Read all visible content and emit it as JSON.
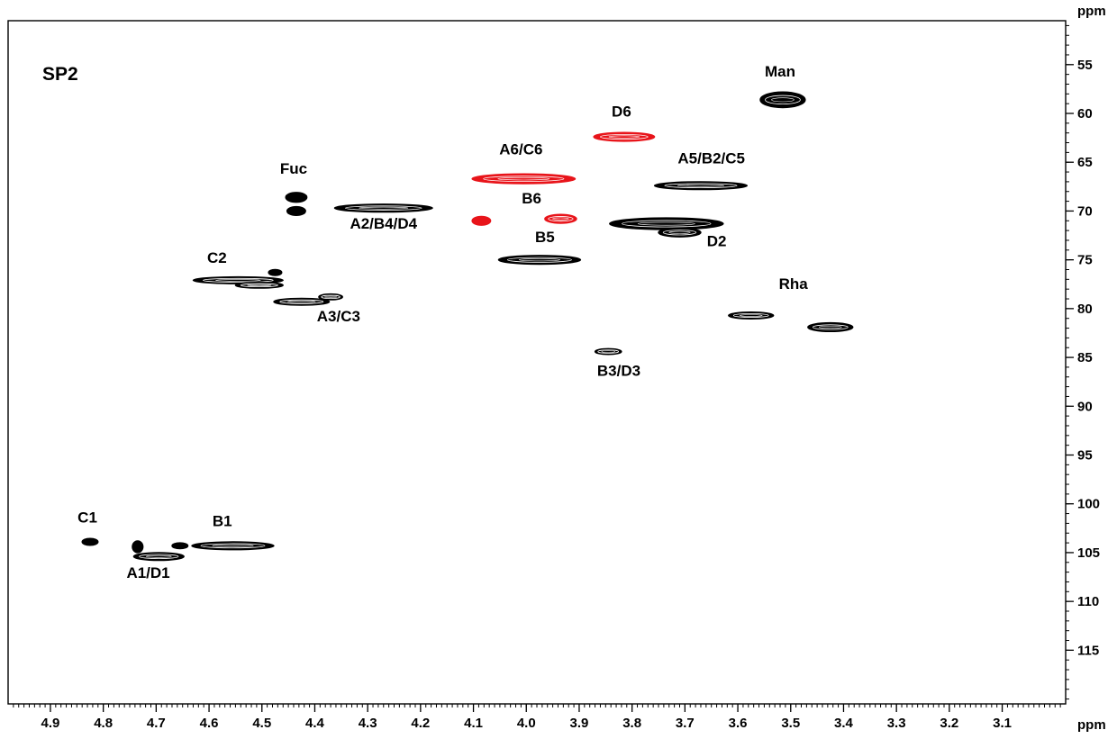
{
  "chart_data": {
    "type": "scatter",
    "panel_label": "SP2",
    "xlabel": "ppm",
    "ylabel": "ppm",
    "x_reversed": true,
    "y_reversed": true,
    "xlim": [
      4.98,
      2.98
    ],
    "ylim": [
      50.5,
      120.5
    ],
    "x_ticks": [
      4.9,
      4.8,
      4.7,
      4.6,
      4.5,
      4.4,
      4.3,
      4.2,
      4.1,
      4.0,
      3.9,
      3.8,
      3.7,
      3.6,
      3.5,
      3.4,
      3.3,
      3.2,
      3.1
    ],
    "x_tick_labels": [
      "4.9",
      "4.8",
      "4.7",
      "4.6",
      "4.5",
      "4.4",
      "4.3",
      "4.2",
      "4.1",
      "4.0",
      "3.9",
      "3.8",
      "3.7",
      "3.6",
      "3.5",
      "3.4",
      "3.3",
      "3.2",
      "3.1"
    ],
    "y_ticks": [
      55,
      60,
      65,
      70,
      75,
      80,
      85,
      90,
      95,
      100,
      105,
      110,
      115
    ],
    "y_tick_labels": [
      "55",
      "60",
      "65",
      "70",
      "75",
      "80",
      "85",
      "90",
      "95",
      "100",
      "105",
      "110",
      "115"
    ],
    "colors": {
      "positive": "#000000",
      "negative": "#e8141a"
    },
    "peaks": [
      {
        "x": 3.515,
        "y": 58.6,
        "w": 0.085,
        "h": 1.6,
        "color": "black"
      },
      {
        "x": 3.815,
        "y": 62.4,
        "w": 0.115,
        "h": 0.9,
        "color": "red"
      },
      {
        "x": 4.005,
        "y": 66.7,
        "w": 0.195,
        "h": 1.0,
        "color": "red"
      },
      {
        "x": 3.67,
        "y": 67.4,
        "w": 0.175,
        "h": 0.8,
        "color": "black"
      },
      {
        "x": 4.435,
        "y": 68.6,
        "w": 0.04,
        "h": 1.0,
        "color": "black"
      },
      {
        "x": 4.435,
        "y": 70.0,
        "w": 0.035,
        "h": 0.9,
        "color": "black"
      },
      {
        "x": 4.27,
        "y": 69.7,
        "w": 0.185,
        "h": 0.8,
        "color": "black"
      },
      {
        "x": 4.085,
        "y": 71.0,
        "w": 0.035,
        "h": 0.9,
        "color": "red"
      },
      {
        "x": 3.935,
        "y": 70.8,
        "w": 0.06,
        "h": 0.9,
        "color": "red"
      },
      {
        "x": 3.735,
        "y": 71.3,
        "w": 0.215,
        "h": 1.2,
        "color": "black"
      },
      {
        "x": 3.71,
        "y": 72.2,
        "w": 0.08,
        "h": 0.9,
        "color": "black"
      },
      {
        "x": 3.975,
        "y": 75.0,
        "w": 0.155,
        "h": 0.9,
        "color": "black"
      },
      {
        "x": 4.545,
        "y": 77.1,
        "w": 0.17,
        "h": 0.7,
        "color": "black"
      },
      {
        "x": 4.505,
        "y": 77.6,
        "w": 0.09,
        "h": 0.6,
        "color": "black"
      },
      {
        "x": 4.475,
        "y": 76.3,
        "w": 0.025,
        "h": 0.6,
        "color": "black"
      },
      {
        "x": 4.425,
        "y": 79.3,
        "w": 0.105,
        "h": 0.7,
        "color": "black"
      },
      {
        "x": 4.37,
        "y": 78.8,
        "w": 0.045,
        "h": 0.6,
        "color": "black"
      },
      {
        "x": 3.575,
        "y": 80.7,
        "w": 0.085,
        "h": 0.7,
        "color": "black"
      },
      {
        "x": 3.425,
        "y": 81.9,
        "w": 0.085,
        "h": 0.9,
        "color": "black"
      },
      {
        "x": 3.845,
        "y": 84.4,
        "w": 0.05,
        "h": 0.6,
        "color": "black"
      },
      {
        "x": 4.825,
        "y": 103.9,
        "w": 0.03,
        "h": 0.7,
        "color": "black"
      },
      {
        "x": 4.695,
        "y": 105.4,
        "w": 0.095,
        "h": 0.8,
        "color": "black"
      },
      {
        "x": 4.735,
        "y": 104.4,
        "w": 0.02,
        "h": 1.2,
        "color": "black"
      },
      {
        "x": 4.655,
        "y": 104.3,
        "w": 0.03,
        "h": 0.6,
        "color": "black"
      },
      {
        "x": 4.555,
        "y": 104.3,
        "w": 0.155,
        "h": 0.8,
        "color": "black"
      }
    ],
    "labels": [
      {
        "text": "Man",
        "x": 3.52,
        "y": 56.2
      },
      {
        "text": "D6",
        "x": 3.82,
        "y": 60.3
      },
      {
        "text": "A6/C6",
        "x": 4.01,
        "y": 64.2
      },
      {
        "text": "A5/B2/C5",
        "x": 3.65,
        "y": 65.1
      },
      {
        "text": "Fuc",
        "x": 4.44,
        "y": 66.2
      },
      {
        "text": "B6",
        "x": 3.99,
        "y": 69.2
      },
      {
        "text": "A2/B4/D4",
        "x": 4.27,
        "y": 71.8
      },
      {
        "text": "B5",
        "x": 3.965,
        "y": 73.2
      },
      {
        "text": "D2",
        "x": 3.64,
        "y": 73.6
      },
      {
        "text": "C2",
        "x": 4.585,
        "y": 75.3
      },
      {
        "text": "Rha",
        "x": 3.495,
        "y": 78.0
      },
      {
        "text": "A3/C3",
        "x": 4.355,
        "y": 81.3
      },
      {
        "text": "B3/D3",
        "x": 3.825,
        "y": 86.9
      },
      {
        "text": "C1",
        "x": 4.83,
        "y": 101.9
      },
      {
        "text": "B1",
        "x": 4.575,
        "y": 102.3
      },
      {
        "text": "A1/D1",
        "x": 4.715,
        "y": 107.6
      }
    ]
  }
}
